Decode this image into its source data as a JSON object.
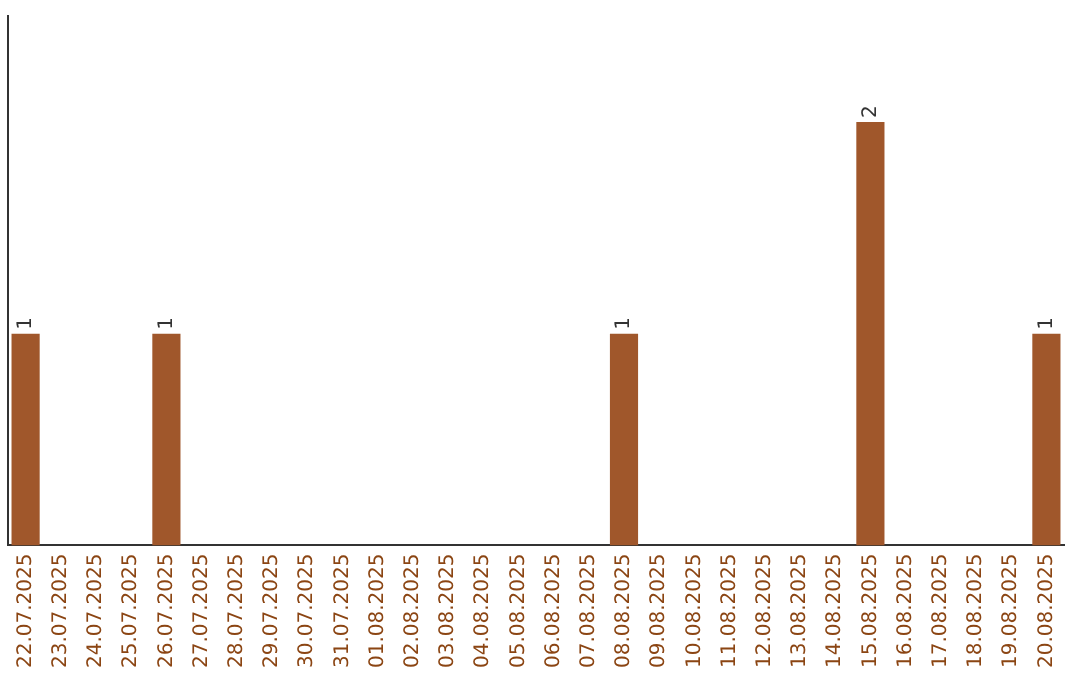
{
  "chart_data": {
    "type": "bar",
    "categories": [
      "22.07.2025",
      "23.07.2025",
      "24.07.2025",
      "25.07.2025",
      "26.07.2025",
      "27.07.2025",
      "28.07.2025",
      "29.07.2025",
      "30.07.2025",
      "31.07.2025",
      "01.08.2025",
      "02.08.2025",
      "03.08.2025",
      "04.08.2025",
      "05.08.2025",
      "06.08.2025",
      "07.08.2025",
      "08.08.2025",
      "09.08.2025",
      "10.08.2025",
      "11.08.2025",
      "12.08.2025",
      "13.08.2025",
      "14.08.2025",
      "15.08.2025",
      "16.08.2025",
      "17.08.2025",
      "18.08.2025",
      "19.08.2025",
      "20.08.2025"
    ],
    "values": [
      1,
      0,
      0,
      0,
      1,
      0,
      0,
      0,
      0,
      0,
      0,
      0,
      0,
      0,
      0,
      0,
      0,
      1,
      0,
      0,
      0,
      0,
      0,
      0,
      2,
      0,
      0,
      0,
      0,
      1
    ],
    "value_labels": [
      "1",
      null,
      null,
      null,
      "1",
      null,
      null,
      null,
      null,
      null,
      null,
      null,
      null,
      null,
      null,
      null,
      null,
      "1",
      null,
      null,
      null,
      null,
      null,
      null,
      "2",
      null,
      null,
      null,
      null,
      "1"
    ],
    "color": "#a0572b",
    "grid": false,
    "legend": false,
    "tick_labels": "x"
  }
}
